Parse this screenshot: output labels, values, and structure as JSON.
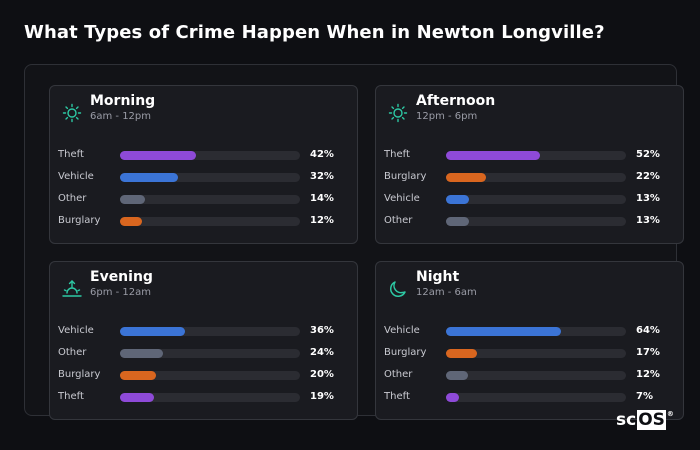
{
  "title": "What Types of Crime Happen When in Newton Longville?",
  "logo": {
    "left": "sc",
    "boxed": "OS",
    "mark": "®"
  },
  "colors": {
    "Theft": "#8e4ad8",
    "Vehicle": "#3b74d6",
    "Other": "#5f6677",
    "Burglary": "#d9661f",
    "icon_accent": "#2dc9a4"
  },
  "chart_data": [
    {
      "type": "bar",
      "orientation": "horizontal",
      "title": "Morning",
      "subtitle": "6am - 12pm",
      "icon": "sun-icon",
      "categories": [
        "Theft",
        "Vehicle",
        "Other",
        "Burglary"
      ],
      "values": [
        42,
        32,
        14,
        12
      ],
      "labels": [
        "42%",
        "32%",
        "14%",
        "12%"
      ],
      "xlim": [
        0,
        100
      ]
    },
    {
      "type": "bar",
      "orientation": "horizontal",
      "title": "Afternoon",
      "subtitle": "12pm - 6pm",
      "icon": "sun-icon",
      "categories": [
        "Theft",
        "Burglary",
        "Vehicle",
        "Other"
      ],
      "values": [
        52,
        22,
        13,
        13
      ],
      "labels": [
        "52%",
        "22%",
        "13%",
        "13%"
      ],
      "xlim": [
        0,
        100
      ]
    },
    {
      "type": "bar",
      "orientation": "horizontal",
      "title": "Evening",
      "subtitle": "6pm - 12am",
      "icon": "sunset-icon",
      "categories": [
        "Vehicle",
        "Other",
        "Burglary",
        "Theft"
      ],
      "values": [
        36,
        24,
        20,
        19
      ],
      "labels": [
        "36%",
        "24%",
        "20%",
        "19%"
      ],
      "xlim": [
        0,
        100
      ]
    },
    {
      "type": "bar",
      "orientation": "horizontal",
      "title": "Night",
      "subtitle": "12am - 6am",
      "icon": "moon-icon",
      "categories": [
        "Vehicle",
        "Burglary",
        "Other",
        "Theft"
      ],
      "values": [
        64,
        17,
        12,
        7
      ],
      "labels": [
        "64%",
        "17%",
        "12%",
        "7%"
      ],
      "xlim": [
        0,
        100
      ]
    }
  ]
}
